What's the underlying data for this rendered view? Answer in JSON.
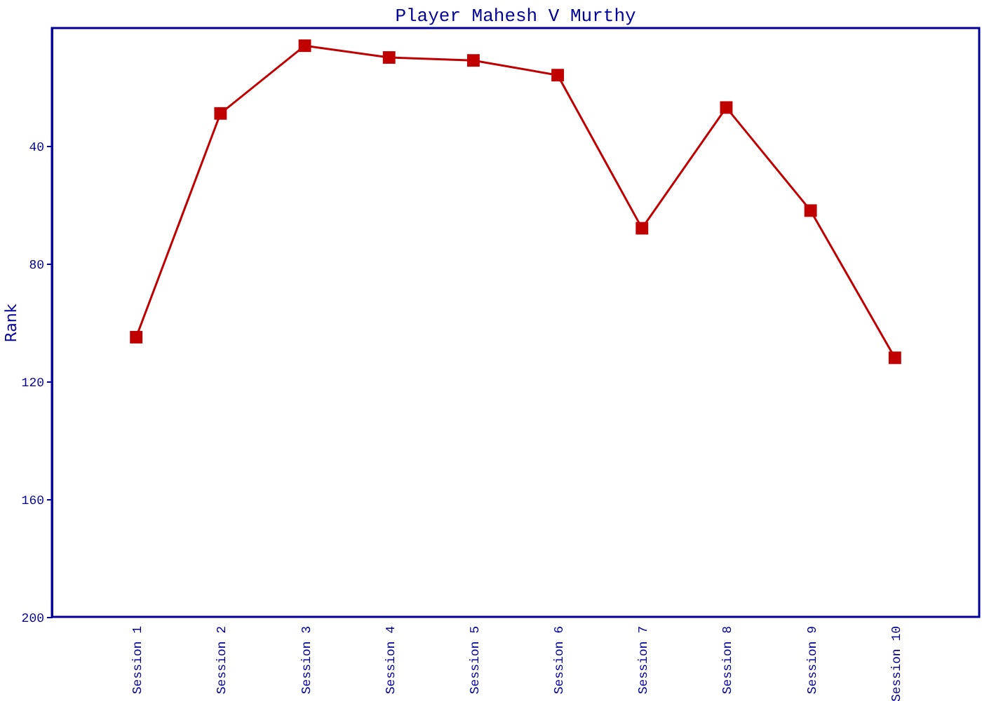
{
  "chart_data": {
    "type": "line",
    "title": "Player Mahesh V Murthy",
    "ylabel": "Rank",
    "categories": [
      "Session 1",
      "Session 2",
      "Session 3",
      "Session 4",
      "Session 5",
      "Session 6",
      "Session 7",
      "Session 8",
      "Session 9",
      "Session 10"
    ],
    "series": [
      {
        "color": "#c00000",
        "values": [
          105,
          29,
          6,
          10,
          11,
          16,
          68,
          27,
          62,
          112
        ]
      }
    ],
    "ylim": [
      200,
      0
    ],
    "yticks": [
      40,
      80,
      120,
      160,
      200
    ],
    "grid": false,
    "legend": false,
    "marker": "square",
    "line_style": "solid"
  }
}
